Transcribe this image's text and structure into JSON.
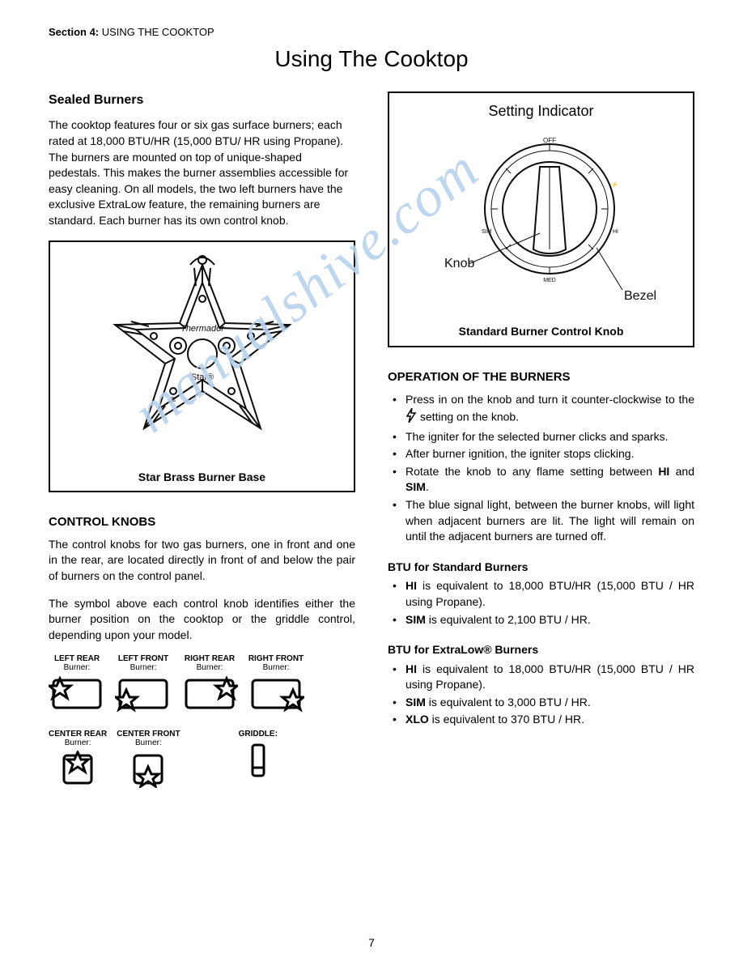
{
  "header": {
    "section_label": "Section 4:",
    "section_title": "USING THE COOKTOP"
  },
  "page_title": "Using The Cooktop",
  "left": {
    "h_sealed": "Sealed Burners",
    "p_sealed": "The cooktop features four or six gas surface burners; each rated at 18,000 BTU/HR (15,000 BTU/ HR using Propane). The burners are mounted on top of unique-shaped pedestals. This makes the burner assemblies accessible for easy cleaning. On all models, the two left burners have the exclusive ExtraLow feature, the remaining burners are standard. Each burner has its own control knob.",
    "fig1_caption": "Star Brass Burner Base",
    "h_knobs": "CONTROL KNOBS",
    "p_knobs1": "The control knobs for two gas burners, one in front and one in the rear, are located directly in front of and below the pair of burners on the control panel.",
    "p_knobs2": "The symbol above each control knob identifies either the burner position on the cooktop or the griddle control, depending upon your model.",
    "positions_row1": [
      {
        "t1": "LEFT REAR",
        "t2": "Burner:",
        "star": "tl"
      },
      {
        "t1": "LEFT FRONT",
        "t2": "Burner:",
        "star": "bl"
      },
      {
        "t1": "RIGHT REAR",
        "t2": "Burner:",
        "star": "tr"
      },
      {
        "t1": "RIGHT FRONT",
        "t2": "Burner:",
        "star": "br"
      }
    ],
    "positions_row2": [
      {
        "t1": "CENTER REAR",
        "t2": "Burner:",
        "star": "ct"
      },
      {
        "t1": "CENTER FRONT",
        "t2": "Burner:",
        "star": "cb"
      },
      {
        "t1": "GRIDDLE:",
        "t2": "",
        "star": "griddle"
      }
    ]
  },
  "right": {
    "fig2_title": "Setting Indicator",
    "fig2_label_knob": "Knob",
    "fig2_label_bezel": "Bezel",
    "fig2_caption": "Standard Burner Control Knob",
    "h_operation": "OPERATION OF THE BURNERS",
    "op_items": [
      "Press in on the knob and turn it counter-clockwise to the ⚡ setting on the knob.",
      "The igniter for the selected burner clicks and sparks.",
      "After burner ignition, the igniter stops clicking.",
      "Rotate the knob to any flame setting between <b>HI</b> and <b>SIM</b>.",
      "The blue signal light, between the burner knobs, will light when adjacent burners are lit. The light will remain on until the adjacent burners are turned off."
    ],
    "btu_std_head": "BTU for Standard Burners",
    "btu_std": [
      "<b>HI</b> is equivalent to 18,000 BTU/HR (15,000 BTU / HR using Propane).",
      "<b>SIM</b> is equivalent to 2,100 BTU / HR."
    ],
    "btu_xlo_head": "BTU for ExtraLow® Burners",
    "btu_xlo": [
      "<b>HI</b> is equivalent to 18,000 BTU/HR (15,000 BTU / HR using Propane).",
      "<b>SIM</b> is equivalent to 3,000 BTU / HR.",
      "<b>XLO</b> is equivalent to 370 BTU / HR."
    ]
  },
  "page_number": "7",
  "watermark": "manualshive.com",
  "colors": {
    "text": "#000000",
    "border": "#000000",
    "bg": "#ffffff",
    "watermark": "#b9d2ee"
  }
}
